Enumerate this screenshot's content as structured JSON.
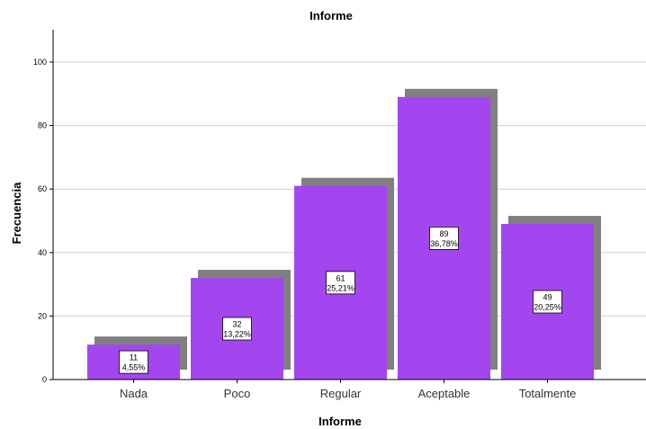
{
  "colors": {
    "bar": "#a346f0",
    "shadow": "#808080",
    "grid": "#cfcfcf",
    "axis": "#000000"
  },
  "chart_data": {
    "type": "bar",
    "title": "Informe",
    "xlabel": "Informe",
    "ylabel": "Frecuencia",
    "categories": [
      "Nada",
      "Poco",
      "Regular",
      "Aceptable",
      "Totalmente"
    ],
    "values": [
      11,
      32,
      61,
      89,
      49
    ],
    "percents": [
      "4,55%",
      "13,22%",
      "25,21%",
      "36,78%",
      "20,25%"
    ],
    "ylim": [
      0,
      110
    ],
    "yticks": [
      0,
      20,
      40,
      60,
      80,
      100
    ],
    "grid": true,
    "legend": "none"
  }
}
